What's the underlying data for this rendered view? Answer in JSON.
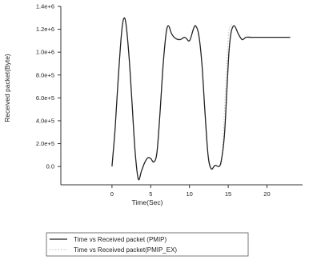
{
  "chart_data": {
    "type": "line",
    "xlabel": "Time(Sec)",
    "ylabel": "Received packet(Byte)",
    "xlim": [
      -6.6,
      24.6
    ],
    "ylim": [
      -160000,
      1400000
    ],
    "x_ticks": [
      0,
      5,
      10,
      15,
      20
    ],
    "x_tick_labels": [
      "0",
      "5",
      "10",
      "15",
      "20"
    ],
    "y_ticks": [
      0,
      200000,
      400000,
      600000,
      800000,
      1000000,
      1200000,
      1400000
    ],
    "y_tick_labels": [
      "0.0",
      "2.0e+5",
      "4.0e+5",
      "6.0e+5",
      "8.0e+5",
      "1.0e+6",
      "1.2e+6",
      "1.4e+6"
    ],
    "grid": false,
    "legend_position": "bottom-center",
    "series": [
      {
        "name": "Time vs Received packet (PMIP)",
        "color": "#222222",
        "dash": "solid",
        "points": [
          [
            0,
            0
          ],
          [
            0.4,
            330000
          ],
          [
            0.8,
            760000
          ],
          [
            1.2,
            1140000
          ],
          [
            1.5,
            1290000
          ],
          [
            1.8,
            1250000
          ],
          [
            2.2,
            960000
          ],
          [
            2.6,
            540000
          ],
          [
            3.0,
            120000
          ],
          [
            3.4,
            -110000
          ],
          [
            3.8,
            -40000
          ],
          [
            4.2,
            30000
          ],
          [
            4.6,
            75000
          ],
          [
            5.0,
            70000
          ],
          [
            5.4,
            40000
          ],
          [
            5.8,
            120000
          ],
          [
            6.2,
            470000
          ],
          [
            6.6,
            890000
          ],
          [
            7.0,
            1170000
          ],
          [
            7.3,
            1230000
          ],
          [
            7.7,
            1160000
          ],
          [
            8.2,
            1120000
          ],
          [
            8.8,
            1110000
          ],
          [
            9.4,
            1130000
          ],
          [
            10.0,
            1100000
          ],
          [
            10.5,
            1200000
          ],
          [
            10.8,
            1230000
          ],
          [
            11.2,
            1150000
          ],
          [
            11.6,
            900000
          ],
          [
            12.0,
            480000
          ],
          [
            12.4,
            100000
          ],
          [
            12.8,
            -20000
          ],
          [
            13.3,
            10000
          ],
          [
            13.8,
            0
          ],
          [
            14.1,
            50000
          ],
          [
            14.5,
            260000
          ],
          [
            14.8,
            630000
          ],
          [
            15.1,
            1000000
          ],
          [
            15.4,
            1180000
          ],
          [
            15.8,
            1230000
          ],
          [
            16.3,
            1160000
          ],
          [
            16.8,
            1110000
          ],
          [
            17.3,
            1130000
          ],
          [
            18.0,
            1130000
          ],
          [
            20.0,
            1130000
          ],
          [
            23.0,
            1130000
          ]
        ]
      },
      {
        "name": "Time vs Received packet(PMIP_EX)",
        "color": "#bfbfbf",
        "dash": "dotted",
        "points": [
          [
            13.8,
            0
          ],
          [
            14.2,
            80000
          ],
          [
            14.6,
            600000
          ],
          [
            15.0,
            1120000
          ],
          [
            15.3,
            1230000
          ],
          [
            15.8,
            1230000
          ],
          [
            16.3,
            1160000
          ],
          [
            16.8,
            1110000
          ],
          [
            17.3,
            1130000
          ]
        ]
      }
    ]
  }
}
